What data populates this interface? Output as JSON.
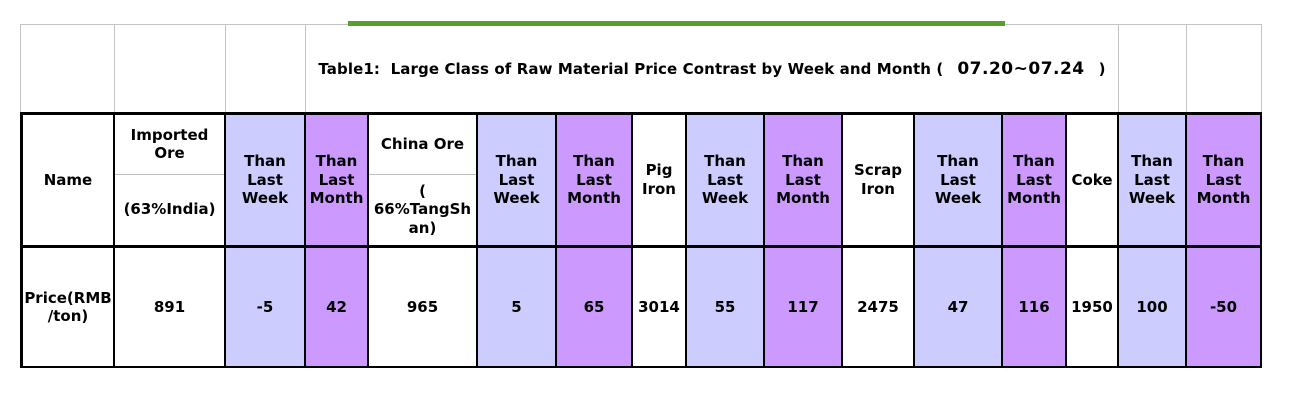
{
  "title": {
    "prefix": "Table1:  Large Class of Raw Material Price Contrast by Week and Month (",
    "date": "07.20~07.24",
    "suffix": ")"
  },
  "header": {
    "name": "Name",
    "imported_ore_top": "Imported\nOre",
    "imported_ore_bottom": "(63%India)",
    "china_ore_top": "China Ore",
    "china_ore_bottom": "(\n66%TangSh\nan)",
    "pig_iron": "Pig\nIron",
    "scrap_iron": "Scrap\nIron",
    "coke": "Coke",
    "than_last_week": "Than\nLast\nWeek",
    "than_last_month": "Than\nLast\nMonth"
  },
  "row": {
    "label": "Price(RMB\n/ton)",
    "imported_ore_price": "891",
    "imported_week": "-5",
    "imported_month": "42",
    "china_ore_price": "965",
    "china_week": "5",
    "china_month": "65",
    "pig_iron_price": "3014",
    "pig_week": "55",
    "pig_month": "117",
    "scrap_iron_price": "2475",
    "scrap_week": "47",
    "scrap_month": "116",
    "coke_price": "1950",
    "coke_week": "100",
    "coke_month": "-50"
  },
  "colors": {
    "week_fill": "#CCCCFF",
    "month_fill": "#CC99FF",
    "accent_line": "#56A02E",
    "grid_line": "#C4C4C4"
  }
}
